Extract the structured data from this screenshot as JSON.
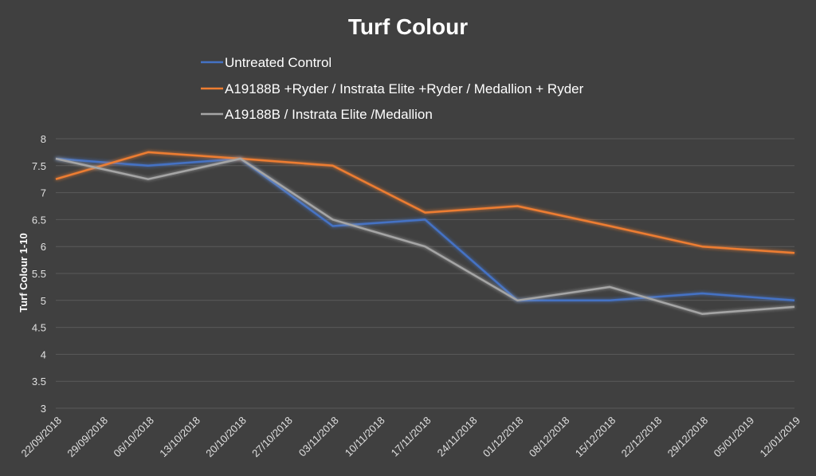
{
  "chart_data": {
    "type": "line",
    "title": "Turf Colour",
    "ylabel": "Turf Colour 1-10",
    "xlabel": "",
    "ylim": [
      3,
      8
    ],
    "ytick_step": 0.5,
    "grid": true,
    "legend_position": "top",
    "x": [
      "22/09/2018",
      "29/09/2018",
      "06/10/2018",
      "13/10/2018",
      "20/10/2018",
      "27/10/2018",
      "03/11/2018",
      "10/11/2018",
      "17/11/2018",
      "24/11/2018",
      "01/12/2018",
      "08/12/2018",
      "15/12/2018",
      "22/12/2018",
      "29/12/2018",
      "05/01/2019",
      "12/01/2019"
    ],
    "series": [
      {
        "name": "Untreated Control",
        "color": "#4472c4",
        "points": [
          [
            0,
            7.63
          ],
          [
            2,
            7.5
          ],
          [
            4,
            7.63
          ],
          [
            6,
            6.38
          ],
          [
            8,
            6.5
          ],
          [
            10,
            5.0
          ],
          [
            12,
            5.0
          ],
          [
            14,
            5.13
          ],
          [
            16,
            5.0
          ]
        ]
      },
      {
        "name": "A19188B +Ryder / Instrata Elite +Ryder / Medallion + Ryder",
        "color": "#ed7d31",
        "points": [
          [
            0,
            7.25
          ],
          [
            2,
            7.75
          ],
          [
            4,
            7.63
          ],
          [
            6,
            7.5
          ],
          [
            8,
            6.63
          ],
          [
            10,
            6.75
          ],
          [
            12,
            6.38
          ],
          [
            14,
            6.0
          ],
          [
            16,
            5.88
          ]
        ]
      },
      {
        "name": "A19188B / Instrata Elite /Medallion",
        "color": "#a5a5a5",
        "points": [
          [
            0,
            7.63
          ],
          [
            2,
            7.25
          ],
          [
            4,
            7.63
          ],
          [
            6,
            6.5
          ],
          [
            8,
            6.0
          ],
          [
            10,
            5.0
          ],
          [
            12,
            5.25
          ],
          [
            14,
            4.75
          ],
          [
            16,
            4.88
          ]
        ]
      }
    ]
  }
}
